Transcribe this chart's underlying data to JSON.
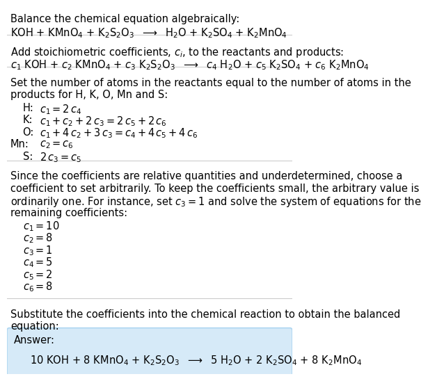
{
  "title_line": "Balance the chemical equation algebraically:",
  "equation_line": "KOH + KMnO$_4$ + K$_2$S$_2$O$_3$  $\\longrightarrow$  H$_2$O + K$_2$SO$_4$ + K$_2$MnO$_4$",
  "section2_intro": "Add stoichiometric coefficients, $c_i$, to the reactants and products:",
  "equation2_line": "$c_1$ KOH + $c_2$ KMnO$_4$ + $c_3$ K$_2$S$_2$O$_3$  $\\longrightarrow$  $c_4$ H$_2$O + $c_5$ K$_2$SO$_4$ + $c_6$ K$_2$MnO$_4$",
  "section3_intro1": "Set the number of atoms in the reactants equal to the number of atoms in the",
  "section3_intro2": "products for H, K, O, Mn and S:",
  "equations": [
    [
      "H:",
      "$c_1 = 2\\,c_4$"
    ],
    [
      "K:",
      "$c_1 + c_2 + 2\\,c_3 = 2\\,c_5 + 2\\,c_6$"
    ],
    [
      "O:",
      "$c_1 + 4\\,c_2 + 3\\,c_3 = c_4 + 4\\,c_5 + 4\\,c_6$"
    ],
    [
      "Mn:",
      "$c_2 = c_6$"
    ],
    [
      "S:",
      "$2\\,c_3 = c_5$"
    ]
  ],
  "section4_line1": "Since the coefficients are relative quantities and underdetermined, choose a",
  "section4_line2": "coefficient to set arbitrarily. To keep the coefficients small, the arbitrary value is",
  "section4_line3": "ordinarily one. For instance, set $c_3 = 1$ and solve the system of equations for the",
  "section4_line4": "remaining coefficients:",
  "coefficients": [
    "$c_1 = 10$",
    "$c_2 = 8$",
    "$c_3 = 1$",
    "$c_4 = 5$",
    "$c_5 = 2$",
    "$c_6 = 8$"
  ],
  "section5_line1": "Substitute the coefficients into the chemical reaction to obtain the balanced",
  "section5_line2": "equation:",
  "answer_label": "Answer:",
  "answer_eq": "10 KOH + 8 KMnO$_4$ + K$_2$S$_2$O$_3$  $\\longrightarrow$  5 H$_2$O + 2 K$_2$SO$_4$ + 8 K$_2$MnO$_4$",
  "bg_color": "#ffffff",
  "answer_box_color": "#d6eaf8",
  "answer_box_border": "#aed6f1",
  "text_color": "#000000",
  "line_color": "#cccccc",
  "font_size": 10.5
}
